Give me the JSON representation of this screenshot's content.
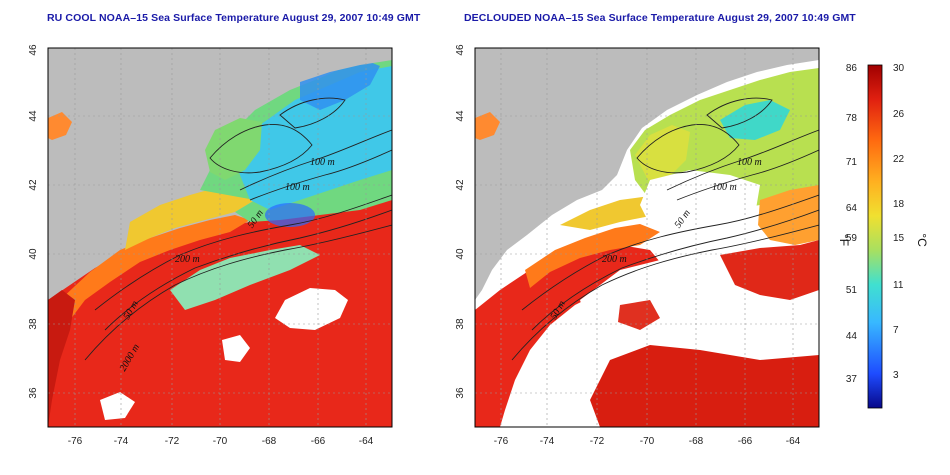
{
  "panels": [
    {
      "title": "RU COOL NOAA–15 Sea Surface Temperature August 29, 2007 10:49 GMT",
      "contour_labels": [
        "100 m",
        "100 m",
        "50 m",
        "200 m",
        "50 m",
        "2000 m"
      ]
    },
    {
      "title": "DECLOUDED NOAA–15 Sea Surface Temperature August 29, 2007 10:49 GMT",
      "contour_labels": [
        "100 m",
        "100 m",
        "50 m",
        "200 m",
        "50 m"
      ]
    }
  ],
  "axes": {
    "x_ticks": [
      "-76",
      "-74",
      "-72",
      "-70",
      "-68",
      "-66",
      "-64"
    ],
    "y_ticks": [
      "46",
      "44",
      "42",
      "40",
      "38",
      "36"
    ]
  },
  "colorbar": {
    "fahrenheit_ticks": [
      "86",
      "78",
      "71",
      "64",
      "59",
      "51",
      "44",
      "37"
    ],
    "celsius_ticks": [
      "30",
      "26",
      "22",
      "18",
      "15",
      "11",
      "7",
      "3"
    ],
    "fahrenheit_unit": "°F",
    "celsius_unit": "°C",
    "colors": [
      "#08088a",
      "#1e4cff",
      "#38b8ff",
      "#40e0d0",
      "#a8e060",
      "#f0e030",
      "#ffb020",
      "#ff6a10",
      "#e02010",
      "#a00000"
    ]
  },
  "colors": {
    "land": "#bcbcbc",
    "cloud": "#ffffff",
    "title": "#1a1aa8"
  }
}
